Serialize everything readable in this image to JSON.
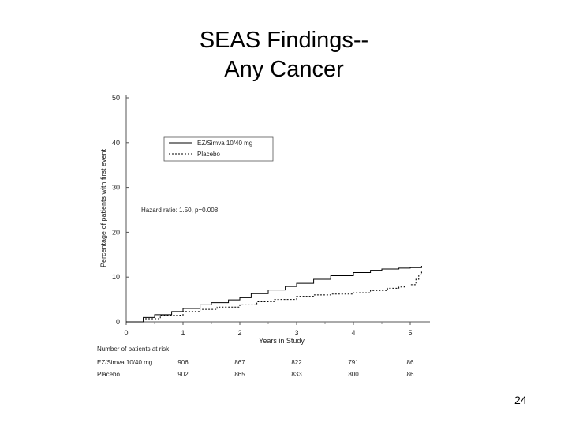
{
  "slide": {
    "title_line1": "SEAS Findings--",
    "title_line2": "Any Cancer",
    "page_number": "24"
  },
  "chart_data": {
    "type": "line",
    "title": "",
    "xlabel": "Years in Study",
    "ylabel": "Percentage of patients with first event",
    "xlim": [
      0,
      5.2
    ],
    "ylim": [
      0,
      50
    ],
    "x_ticks": [
      "0",
      "1",
      "2",
      "3",
      "4",
      "5"
    ],
    "y_ticks": [
      "0",
      "10",
      "20",
      "30",
      "40",
      "50"
    ],
    "legend_position": "top-center",
    "annotation": "Hazard ratio: 1.50, p=0.008",
    "series": [
      {
        "name": "EZ/Simva 10/40 mg",
        "style": "solid",
        "color": "#000000",
        "x": [
          0,
          0.3,
          0.5,
          0.8,
          1.0,
          1.3,
          1.5,
          1.8,
          2.0,
          2.2,
          2.5,
          2.8,
          3.0,
          3.3,
          3.6,
          4.0,
          4.3,
          4.5,
          4.8,
          5.0,
          5.15,
          5.2
        ],
        "y": [
          0,
          1.0,
          1.6,
          2.3,
          3.0,
          3.8,
          4.3,
          4.9,
          5.4,
          6.3,
          7.1,
          7.9,
          8.6,
          9.5,
          10.3,
          11.0,
          11.5,
          11.8,
          12.0,
          12.1,
          12.1,
          12.5
        ]
      },
      {
        "name": "Placebo",
        "style": "dashed",
        "color": "#000000",
        "x": [
          0,
          0.3,
          0.6,
          1.0,
          1.3,
          1.6,
          2.0,
          2.3,
          2.6,
          3.0,
          3.3,
          3.6,
          4.0,
          4.3,
          4.6,
          4.8,
          4.9,
          5.0,
          5.1,
          5.15,
          5.2
        ],
        "y": [
          0,
          0.7,
          1.5,
          2.3,
          2.8,
          3.3,
          3.8,
          4.5,
          5.0,
          5.7,
          6.0,
          6.2,
          6.5,
          7.0,
          7.5,
          7.8,
          8.0,
          8.3,
          9.5,
          10.5,
          11.5
        ]
      }
    ],
    "at_risk": {
      "label": "Number of patients at risk",
      "rows": [
        {
          "name": "EZ/Simva 10/40 mg",
          "values": [
            "906",
            "867",
            "822",
            "791",
            "86"
          ]
        },
        {
          "name": "Placebo",
          "values": [
            "902",
            "865",
            "833",
            "800",
            "86"
          ]
        }
      ]
    }
  }
}
